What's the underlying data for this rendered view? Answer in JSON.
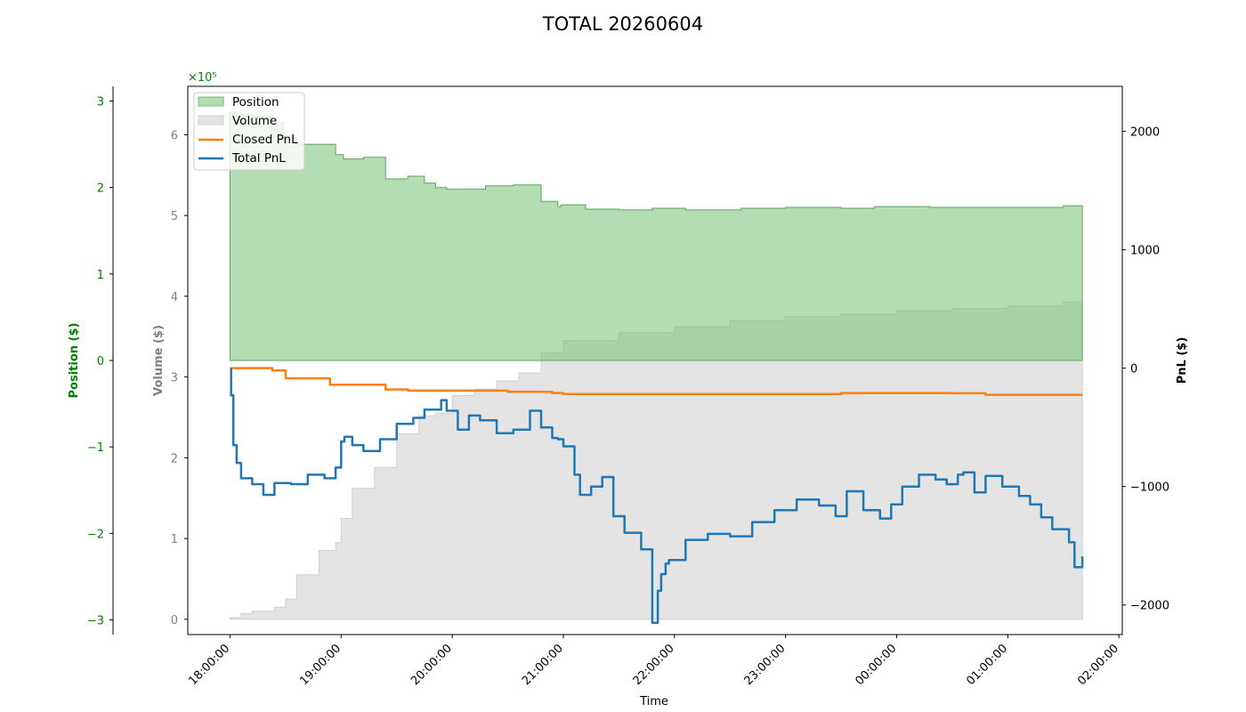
{
  "chart_data": {
    "type": "line",
    "title": "TOTAL 20260604",
    "xlabel": "Time",
    "x_ticks": [
      "18:00:00",
      "19:00:00",
      "20:00:00",
      "21:00:00",
      "22:00:00",
      "23:00:00",
      "00:00:00",
      "01:00:00",
      "02:00:00"
    ],
    "x_range_hours": [
      -0.38,
      8.03
    ],
    "axes": {
      "position": {
        "label": "Position ($)",
        "color": "#008000",
        "scale_text": "×10⁵",
        "ylim": [
          -3.17,
          3.17
        ],
        "ticks": [
          "−3",
          "−2",
          "−1",
          "0",
          "1",
          "2",
          "3"
        ],
        "tick_values": [
          -3,
          -2,
          -1,
          0,
          1,
          2,
          3
        ]
      },
      "volume": {
        "label": "Volume ($)",
        "color": "#808080",
        "ylim": [
          -0.19,
          6.6
        ],
        "ticks": [
          "0",
          "1",
          "2",
          "3",
          "4",
          "5",
          "6"
        ],
        "tick_values": [
          0,
          1,
          2,
          3,
          4,
          5,
          6
        ]
      },
      "pnl": {
        "label": "PnL ($)",
        "color": "#000000",
        "ylim": [
          -2250,
          2380
        ],
        "ticks": [
          "−2000",
          "−1000",
          "0",
          "1000",
          "2000"
        ],
        "tick_values": [
          -2000,
          -1000,
          0,
          1000,
          2000
        ]
      }
    },
    "legend": {
      "placement": "top-left",
      "entries": [
        "Position",
        "Volume",
        "Closed PnL",
        "Total PnL"
      ]
    },
    "colors": {
      "position": "#76c176",
      "volume": "#d9d9d9",
      "closed": "#ff7f0e",
      "total": "#1f77b4"
    },
    "series": [
      {
        "name": "Position",
        "unit": "x1e5 $",
        "x_hours": [
          0,
          0.08,
          0.2,
          0.38,
          0.48,
          0.6,
          0.75,
          0.95,
          1.02,
          1.2,
          1.4,
          1.6,
          1.75,
          1.85,
          1.95,
          2.1,
          2.3,
          2.55,
          2.8,
          2.95,
          2.98,
          3.2,
          3.5,
          3.8,
          4.1,
          4.6,
          5.0,
          5.5,
          5.8,
          6.3,
          7.0,
          7.5,
          7.67
        ],
        "values": [
          2.87,
          2.85,
          2.82,
          2.75,
          2.58,
          2.5,
          2.5,
          2.38,
          2.33,
          2.35,
          2.1,
          2.13,
          2.05,
          2.0,
          1.98,
          1.98,
          2.02,
          2.03,
          1.84,
          1.78,
          1.8,
          1.75,
          1.74,
          1.76,
          1.74,
          1.76,
          1.77,
          1.76,
          1.78,
          1.77,
          1.77,
          1.79,
          1.78
        ]
      },
      {
        "name": "Volume",
        "unit": "x1e5 $",
        "x_hours": [
          0,
          0.1,
          0.2,
          0.4,
          0.5,
          0.6,
          0.8,
          0.95,
          1.0,
          1.1,
          1.3,
          1.5,
          1.7,
          1.85,
          2.0,
          2.2,
          2.4,
          2.6,
          2.8,
          3.0,
          3.5,
          4.0,
          4.5,
          5.0,
          5.5,
          6.0,
          6.5,
          7.0,
          7.5,
          7.67
        ],
        "values": [
          0.02,
          0.07,
          0.1,
          0.15,
          0.25,
          0.55,
          0.85,
          0.95,
          1.25,
          1.62,
          1.88,
          2.3,
          2.52,
          2.55,
          2.77,
          2.85,
          2.95,
          3.05,
          3.3,
          3.45,
          3.55,
          3.62,
          3.7,
          3.75,
          3.78,
          3.82,
          3.85,
          3.88,
          3.93,
          3.95
        ]
      },
      {
        "name": "Closed PnL",
        "unit": "$",
        "x_hours": [
          0,
          0.2,
          0.38,
          0.5,
          0.9,
          1.4,
          1.6,
          2.5,
          2.9,
          3.0,
          4.0,
          5.5,
          6.5,
          6.8,
          7.67
        ],
        "values": [
          0,
          0,
          -20,
          -85,
          -140,
          -180,
          -190,
          -200,
          -210,
          -218,
          -218,
          -210,
          -212,
          -225,
          -225
        ]
      },
      {
        "name": "Total PnL",
        "unit": "$",
        "x_hours": [
          0,
          0.01,
          0.03,
          0.06,
          0.1,
          0.2,
          0.3,
          0.4,
          0.55,
          0.7,
          0.85,
          0.95,
          1.0,
          1.03,
          1.1,
          1.2,
          1.35,
          1.5,
          1.65,
          1.75,
          1.9,
          1.95,
          2.05,
          2.15,
          2.25,
          2.4,
          2.55,
          2.7,
          2.8,
          2.9,
          2.95,
          3.0,
          3.05,
          3.1,
          3.15,
          3.25,
          3.35,
          3.45,
          3.55,
          3.7,
          3.8,
          3.85,
          3.88,
          3.92,
          3.95,
          4.1,
          4.3,
          4.5,
          4.7,
          4.9,
          5.1,
          5.3,
          5.45,
          5.55,
          5.7,
          5.85,
          5.95,
          6.05,
          6.2,
          6.35,
          6.45,
          6.55,
          6.6,
          6.7,
          6.8,
          6.95,
          7.1,
          7.2,
          7.3,
          7.4,
          7.55,
          7.6,
          7.67
        ],
        "values": [
          -10,
          -230,
          -650,
          -800,
          -930,
          -980,
          -1070,
          -970,
          -980,
          -900,
          -930,
          -840,
          -620,
          -580,
          -650,
          -700,
          -600,
          -470,
          -420,
          -350,
          -270,
          -360,
          -520,
          -400,
          -440,
          -550,
          -520,
          -360,
          -500,
          -590,
          -600,
          -660,
          -660,
          -900,
          -1070,
          -1000,
          -920,
          -1250,
          -1390,
          -1530,
          -2150,
          -1880,
          -1740,
          -1650,
          -1620,
          -1450,
          -1400,
          -1420,
          -1300,
          -1200,
          -1110,
          -1160,
          -1250,
          -1040,
          -1200,
          -1270,
          -1150,
          -1000,
          -900,
          -940,
          -980,
          -900,
          -880,
          -1050,
          -910,
          -1000,
          -1080,
          -1150,
          -1260,
          -1360,
          -1470,
          -1680,
          -1590
        ]
      }
    ]
  }
}
